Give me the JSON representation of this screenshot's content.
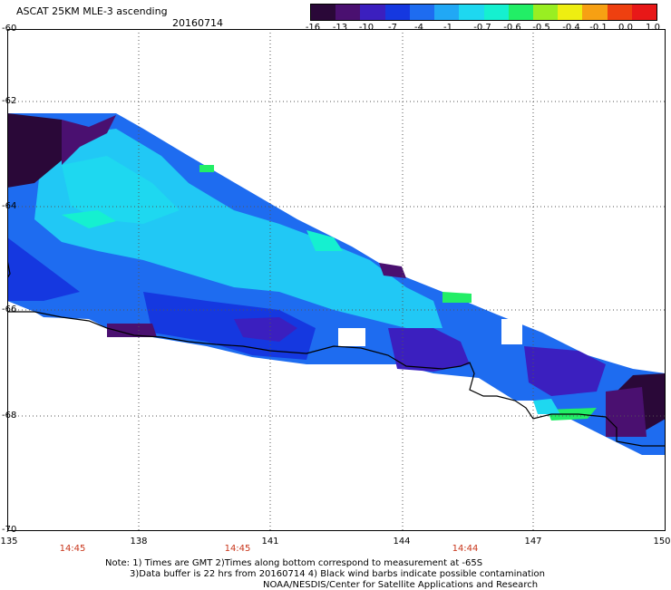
{
  "header": {
    "title": "ASCAT 25KM MLE-3 ascending",
    "date": "20160714"
  },
  "colorbar": {
    "labels": [
      "-16",
      "-13",
      "-10",
      "-7",
      "-4",
      "-1",
      "-0.7",
      "-0.6",
      "-0.5",
      "-0.4",
      "-0.1",
      "0.0",
      "1.0"
    ],
    "colors": [
      "#2a0838",
      "#4a1070",
      "#3b1fbf",
      "#1538e0",
      "#1e6cf0",
      "#21a8f5",
      "#1ed8f0",
      "#15f0d0",
      "#22ee66",
      "#99ee22",
      "#eeee11",
      "#f7a013",
      "#ee4010",
      "#e81818"
    ]
  },
  "map": {
    "lat_labels": [
      "-60",
      "-62",
      "-64",
      "-66",
      "-68",
      "-70"
    ],
    "lon_labels": [
      "135",
      "138",
      "141",
      "144",
      "147",
      "150"
    ],
    "time_labels": [
      "14:45",
      "14:45",
      "14:44"
    ],
    "lon_range": [
      135,
      150
    ],
    "lat_range": [
      -70,
      -60
    ]
  },
  "footer": {
    "line1": "Note: 1) Times are GMT 2)Times along bottom correspond to measurement at -65S",
    "line2": "3)Data buffer is 22 hrs from 20160714 4) Black wind barbs indicate possible contamination",
    "line3": "NOAA/NESDIS/Center for Satellite Applications and Research"
  }
}
